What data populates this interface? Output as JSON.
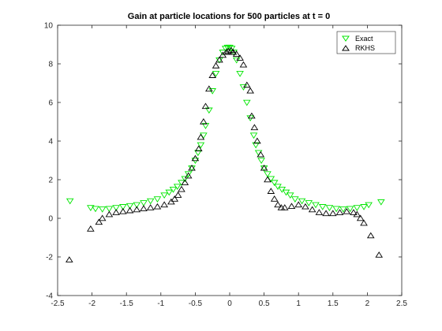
{
  "chart_data": {
    "type": "scatter",
    "title": "Gain at particle locations for 500 particles at t = 0",
    "xlabel": "",
    "ylabel": "",
    "xlim": [
      -2.5,
      2.5
    ],
    "ylim": [
      -4,
      10
    ],
    "xticks": [
      -2.5,
      -2,
      -1.5,
      -1,
      -0.5,
      0,
      0.5,
      1,
      1.5,
      2,
      2.5
    ],
    "xtick_labels": [
      "-2.5",
      "-2",
      "-1.5",
      "-1",
      "-0.5",
      "0",
      "0.5",
      "1",
      "1.5",
      "2",
      "2.5"
    ],
    "yticks": [
      -4,
      -2,
      0,
      2,
      4,
      6,
      8,
      10
    ],
    "ytick_labels": [
      "-4",
      "-2",
      "0",
      "2",
      "4",
      "6",
      "8",
      "10"
    ],
    "grid": false,
    "legend_position": "top-right",
    "series": [
      {
        "name": "Exact",
        "marker": "triangle-down",
        "color": "#00e600",
        "x": [
          -2.32,
          -2.02,
          -1.95,
          -1.85,
          -1.75,
          -1.65,
          -1.55,
          -1.45,
          -1.35,
          -1.25,
          -1.15,
          -1.05,
          -0.95,
          -0.88,
          -0.82,
          -0.76,
          -0.7,
          -0.65,
          -0.6,
          -0.55,
          -0.5,
          -0.46,
          -0.42,
          -0.38,
          -0.35,
          -0.3,
          -0.25,
          -0.2,
          -0.15,
          -0.1,
          -0.06,
          -0.03,
          0,
          0.03,
          0.06,
          0.1,
          0.15,
          0.2,
          0.25,
          0.3,
          0.35,
          0.38,
          0.42,
          0.46,
          0.5,
          0.55,
          0.6,
          0.65,
          0.7,
          0.76,
          0.82,
          0.88,
          0.95,
          1.05,
          1.15,
          1.25,
          1.35,
          1.45,
          1.55,
          1.65,
          1.75,
          1.85,
          1.95,
          2.02,
          2.2
        ],
        "y": [
          0.9,
          0.55,
          0.5,
          0.48,
          0.5,
          0.55,
          0.6,
          0.65,
          0.7,
          0.8,
          0.9,
          1.0,
          1.2,
          1.35,
          1.5,
          1.65,
          1.85,
          2.05,
          2.3,
          2.6,
          3.0,
          3.4,
          3.8,
          4.3,
          4.8,
          5.6,
          6.6,
          7.5,
          8.2,
          8.6,
          8.8,
          8.85,
          8.85,
          8.8,
          8.6,
          8.2,
          7.5,
          6.8,
          6.0,
          5.2,
          4.3,
          3.8,
          3.4,
          3.0,
          2.6,
          2.3,
          2.05,
          1.85,
          1.65,
          1.5,
          1.35,
          1.2,
          1.0,
          0.9,
          0.8,
          0.7,
          0.6,
          0.55,
          0.5,
          0.48,
          0.5,
          0.55,
          0.6,
          0.7,
          0.85
        ]
      },
      {
        "name": "RKHS",
        "marker": "triangle-up",
        "color": "#000000",
        "x": [
          -2.33,
          -2.02,
          -1.9,
          -1.85,
          -1.75,
          -1.65,
          -1.55,
          -1.45,
          -1.35,
          -1.25,
          -1.15,
          -1.05,
          -0.95,
          -0.85,
          -0.8,
          -0.75,
          -0.7,
          -0.65,
          -0.6,
          -0.55,
          -0.5,
          -0.45,
          -0.42,
          -0.38,
          -0.35,
          -0.3,
          -0.25,
          -0.2,
          -0.15,
          -0.1,
          -0.05,
          -0.02,
          0.02,
          0.05,
          0.1,
          0.15,
          0.2,
          0.25,
          0.3,
          0.32,
          0.36,
          0.4,
          0.45,
          0.5,
          0.55,
          0.6,
          0.65,
          0.7,
          0.75,
          0.8,
          0.9,
          1.0,
          1.1,
          1.2,
          1.3,
          1.4,
          1.5,
          1.6,
          1.7,
          1.8,
          1.85,
          1.9,
          1.95,
          2.05,
          2.17
        ],
        "y": [
          -2.15,
          -0.55,
          -0.2,
          0.0,
          0.2,
          0.3,
          0.35,
          0.4,
          0.45,
          0.5,
          0.55,
          0.6,
          0.7,
          0.85,
          1.0,
          1.2,
          1.5,
          1.85,
          2.2,
          2.6,
          3.1,
          3.6,
          4.2,
          5.0,
          5.8,
          6.7,
          7.4,
          7.9,
          8.2,
          8.45,
          8.6,
          8.65,
          8.7,
          8.6,
          8.5,
          8.3,
          7.95,
          6.9,
          6.6,
          5.3,
          4.7,
          4.0,
          3.3,
          2.6,
          2.0,
          1.4,
          1.0,
          0.7,
          0.55,
          0.55,
          0.62,
          0.7,
          0.6,
          0.45,
          0.3,
          0.25,
          0.25,
          0.3,
          0.35,
          0.3,
          0.2,
          0.0,
          -0.25,
          -0.9,
          -1.9
        ]
      }
    ]
  }
}
